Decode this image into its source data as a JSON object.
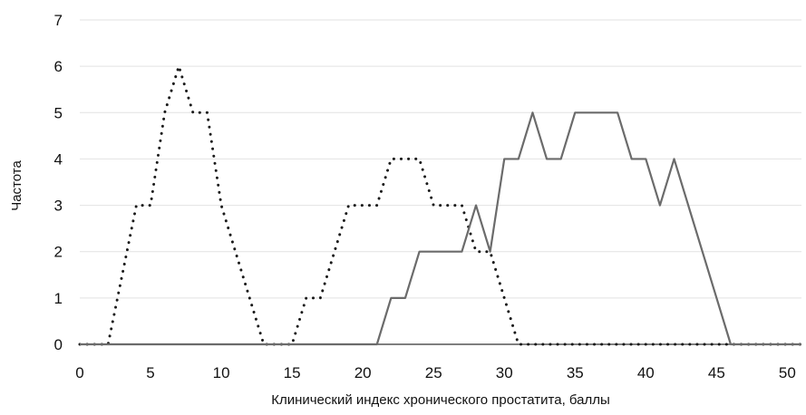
{
  "chart_data": {
    "type": "line",
    "title": "",
    "xlabel": "Клинический индекс хронического простатита, баллы",
    "ylabel": "Частота",
    "xlim": [
      0,
      51
    ],
    "ylim": [
      0,
      7
    ],
    "x_ticks": [
      0,
      5,
      10,
      15,
      20,
      25,
      30,
      35,
      40,
      45,
      50
    ],
    "y_ticks": [
      0,
      1,
      2,
      3,
      4,
      5,
      6,
      7
    ],
    "grid": "horizontal",
    "legend": "none",
    "series": [
      {
        "style": "dotted",
        "color": "#1a1a1a",
        "x": [
          0,
          1,
          2,
          3,
          4,
          5,
          6,
          7,
          8,
          9,
          10,
          11,
          12,
          13,
          14,
          15,
          16,
          17,
          18,
          19,
          20,
          21,
          22,
          23,
          24,
          25,
          26,
          27,
          28,
          29,
          30,
          31,
          32,
          33,
          34,
          35,
          36,
          37,
          38,
          39,
          40,
          41,
          42,
          43,
          44,
          45,
          46,
          47,
          48,
          49,
          50,
          51
        ],
        "values": [
          0,
          0,
          0,
          1.5,
          3,
          3,
          5,
          6,
          5,
          5,
          3,
          2,
          1,
          0,
          0,
          0,
          1,
          1,
          2,
          3,
          3,
          3,
          4,
          4,
          4,
          3,
          3,
          3,
          2,
          2,
          1,
          0,
          0,
          0,
          0,
          0,
          0,
          0,
          0,
          0,
          0,
          0,
          0,
          0,
          0,
          0,
          0,
          0,
          0,
          0,
          0,
          0
        ]
      },
      {
        "style": "solid",
        "color": "#6b6b6b",
        "x": [
          0,
          21,
          22,
          23,
          24,
          25,
          26,
          27,
          28,
          29,
          30,
          31,
          32,
          33,
          34,
          35,
          36,
          37,
          38,
          39,
          40,
          41,
          42,
          43,
          44,
          45,
          46,
          47,
          48,
          49,
          50,
          51
        ],
        "values": [
          0,
          0,
          1,
          1,
          2,
          2,
          2,
          2,
          3,
          2,
          4,
          4,
          5,
          4,
          4,
          5,
          5,
          5,
          5,
          4,
          4,
          3,
          4,
          3,
          2,
          1,
          0,
          0,
          0,
          0,
          0,
          0
        ]
      }
    ]
  }
}
